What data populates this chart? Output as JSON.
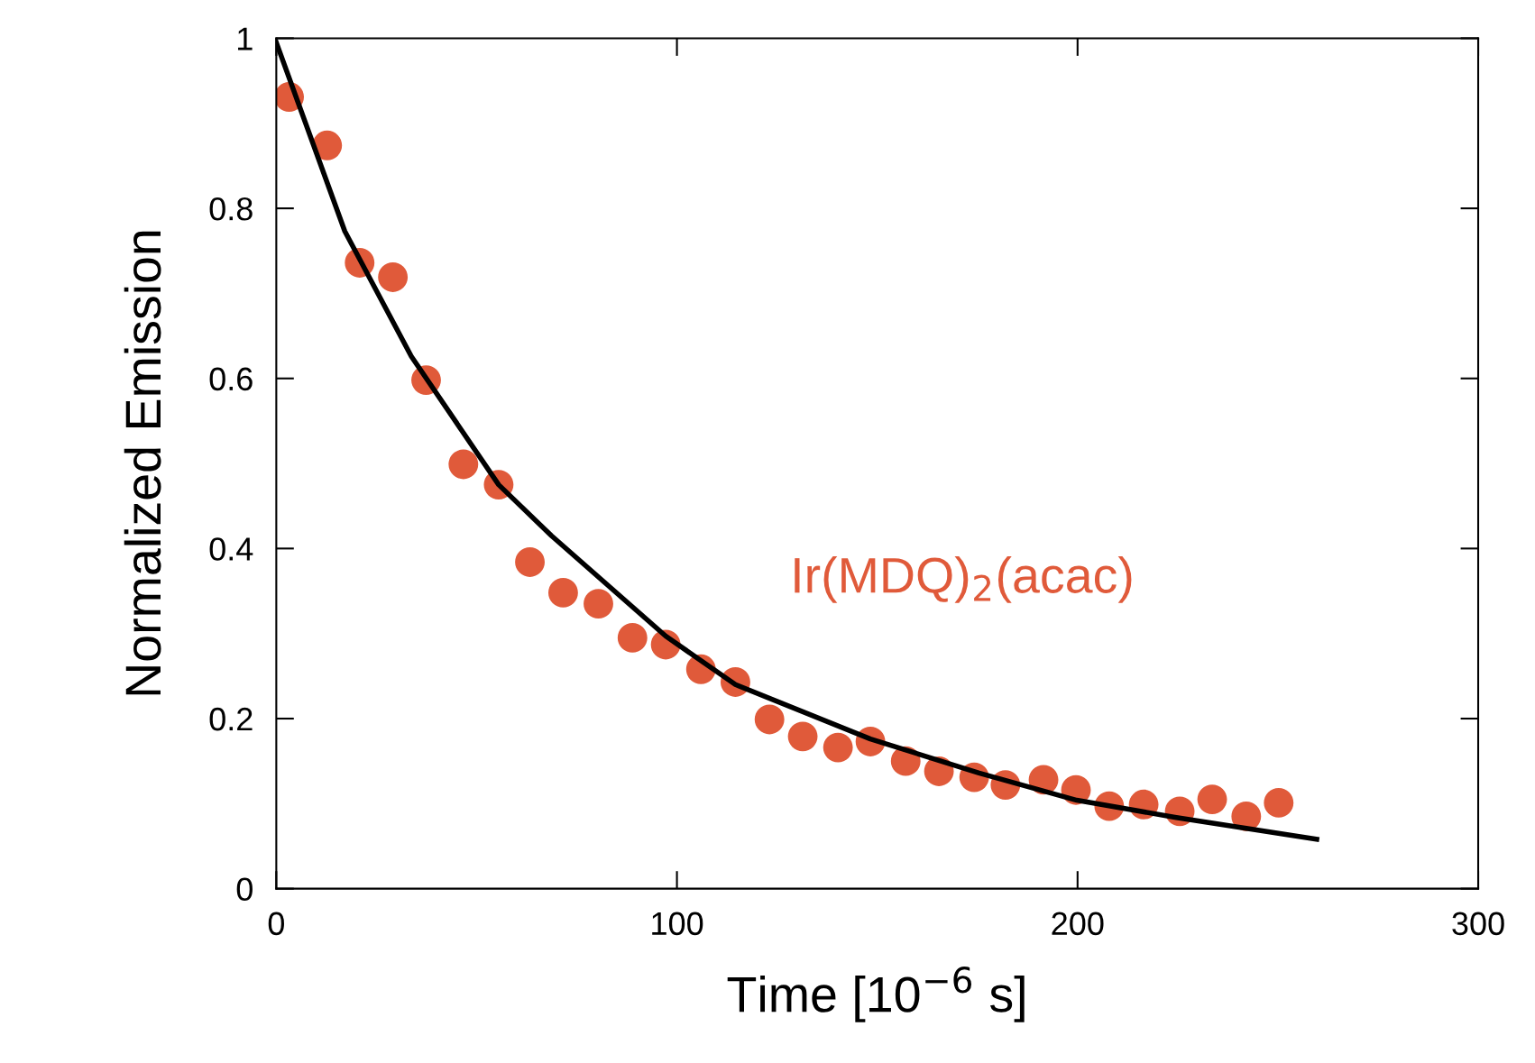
{
  "chart_data": {
    "type": "scatter",
    "xlabel": "Time [10$^{−6}$ s]",
    "ylabel": "Normalized Emission",
    "xlim": [
      0,
      300
    ],
    "ylim": [
      0,
      1
    ],
    "xticks": [
      0,
      100,
      200,
      300
    ],
    "yticks": [
      0,
      {
        "value": 0.2,
        "label": "0.2"
      },
      {
        "value": 0.4,
        "label": "0.4"
      },
      {
        "value": 0.6,
        "label": "0.6"
      },
      {
        "value": 0.8,
        "label": "0.8"
      },
      1
    ],
    "grid": false,
    "legend": false,
    "marker": "circle",
    "series": [
      {
        "name": "Ir(MDQ)$_{2}$(acac)",
        "color": "#e05a3a",
        "x": [
          3.2,
          12.7,
          20.8,
          29.1,
          37.4,
          46.7,
          55.5,
          63.3,
          71.6,
          80.4,
          88.9,
          97.2,
          106.0,
          114.6,
          123.1,
          131.4,
          140.2,
          148.3,
          157.1,
          165.4,
          174.2,
          182.0,
          191.5,
          199.6,
          207.9,
          216.5,
          225.5,
          233.6,
          242.1,
          250.2
        ],
        "values": [
          0.931,
          0.874,
          0.736,
          0.719,
          0.598,
          0.499,
          0.475,
          0.384,
          0.348,
          0.335,
          0.295,
          0.287,
          0.258,
          0.243,
          0.199,
          0.179,
          0.166,
          0.173,
          0.15,
          0.138,
          0.131,
          0.122,
          0.128,
          0.116,
          0.097,
          0.099,
          0.091,
          0.105,
          0.085,
          0.101
        ]
      },
      {
        "type": "line",
        "color": "#000000",
        "line_style": "solid",
        "marker": "none",
        "x": [
          0,
          17.1,
          33.7,
          55.5,
          68.7,
          97.2,
          114.6,
          148.3,
          175.4,
          199.8,
          224.3,
          259.7
        ],
        "values": [
          0.995,
          0.773,
          0.626,
          0.475,
          0.415,
          0.297,
          0.24,
          0.176,
          0.136,
          0.104,
          0.084,
          0.058
        ]
      }
    ]
  }
}
